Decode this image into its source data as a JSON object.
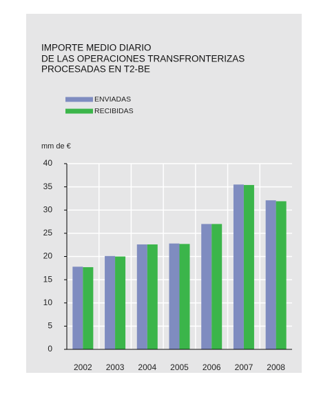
{
  "chart_data": {
    "type": "bar",
    "title": [
      "IMPORTE MEDIO DIARIO",
      "DE LAS OPERACIONES TRANSFRONTERIZAS",
      "PROCESADAS EN T2-BE"
    ],
    "y_label": "mm de €",
    "categories": [
      "2002",
      "2003",
      "2004",
      "2005",
      "2006",
      "2007",
      "2008"
    ],
    "series": [
      {
        "name": "ENVIADAS",
        "color": "#7f8cc0",
        "values": [
          17.8,
          20.1,
          22.6,
          22.8,
          27.0,
          35.5,
          32.1
        ]
      },
      {
        "name": "RECIBIDAS",
        "color": "#3bb54a",
        "values": [
          17.7,
          20.0,
          22.6,
          22.7,
          27.0,
          35.4,
          31.9
        ]
      }
    ],
    "ylim": [
      0,
      40
    ],
    "yticks": [
      0,
      5,
      10,
      15,
      20,
      25,
      30,
      35,
      40
    ],
    "grid": true
  }
}
